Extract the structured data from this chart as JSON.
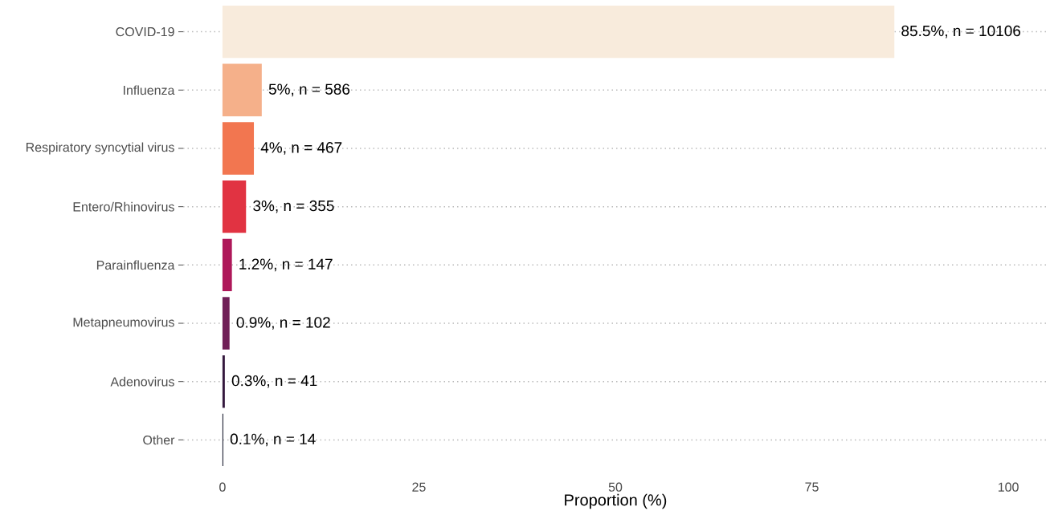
{
  "chart_data": {
    "type": "bar",
    "orientation": "horizontal",
    "xlabel": "Proportion (%)",
    "categories": [
      "COVID-19",
      "Influenza",
      "Respiratory syncytial virus",
      "Entero/Rhinovirus",
      "Parainfluenza",
      "Metapneumovirus",
      "Adenovirus",
      "Other"
    ],
    "values": [
      85.5,
      5,
      4,
      3,
      1.2,
      0.9,
      0.3,
      0.1
    ],
    "colors": [
      "#f8ebdc",
      "#f5b08a",
      "#f27650",
      "#e13342",
      "#ae1759",
      "#701f57",
      "#35193e",
      "#03051a"
    ],
    "value_labels": [
      "85.5%, n = 10106",
      "5%, n = 586",
      "4%, n = 467",
      "3%, n = 355",
      "1.2%, n = 147",
      "0.9%, n = 102",
      "0.3%, n = 41",
      "0.1%, n = 14"
    ],
    "xlim": [
      -5,
      105
    ],
    "xticks": [
      0,
      25,
      50,
      75,
      100
    ],
    "grid": "y"
  }
}
